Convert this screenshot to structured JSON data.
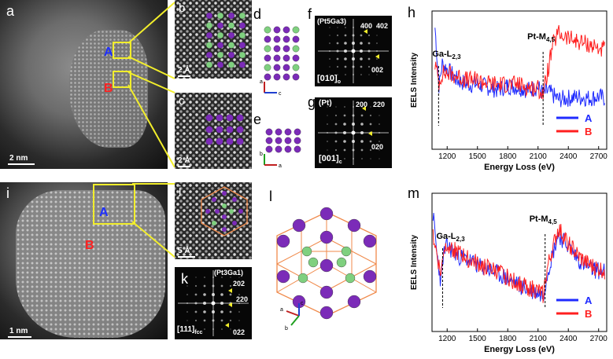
{
  "panels": {
    "a": "a",
    "b": "b",
    "c": "c",
    "d": "d",
    "e": "e",
    "f": "f",
    "g": "g",
    "h": "h",
    "i": "i",
    "j": "j",
    "k": "k",
    "l": "l",
    "m": "m"
  },
  "markers": {
    "A": "A",
    "B": "B"
  },
  "scalebars": {
    "a": "2 nm",
    "b": "2 Å",
    "c": "2 Å",
    "i": "1 nm",
    "j": "5 Å"
  },
  "fft_f": {
    "phase": "(Pt5Ga3)",
    "zone": "[010]",
    "zone_sub": "o",
    "spots": [
      "400",
      "402",
      "002"
    ]
  },
  "fft_g": {
    "phase": "(Pt)",
    "zone": "[001]",
    "zone_sub": "c",
    "spots": [
      "200",
      "220",
      "020"
    ]
  },
  "fft_k": {
    "phase": "(Pt3Ga1)",
    "zone": "[111]",
    "zone_sub": "fcc",
    "spots": [
      "202",
      "220",
      "022"
    ]
  },
  "axes_d": {
    "v": "a",
    "h": "c"
  },
  "axes_e": {
    "v": "b",
    "h": "a"
  },
  "axes_l": {
    "a": "a",
    "b": "b",
    "c": "c"
  },
  "colors": {
    "A": "#1f2bff",
    "B": "#ff1f1f",
    "highlight": "#f2ee2b",
    "cell": "#f08a4b",
    "pt_atom": "#7b2bb8",
    "ga_atom": "#7fd07f"
  },
  "chart_data": [
    {
      "type": "line",
      "panel": "h",
      "ylabel": "EELS Intensity",
      "xlabel": "Energy Loss (eV)",
      "xticks": [
        1200,
        1500,
        1800,
        2100,
        2400,
        2700
      ],
      "xlim": [
        1050,
        2780
      ],
      "edges": [
        {
          "label": "Ga-L2,3",
          "x": 1115
        },
        {
          "label": "Pt-M4,5",
          "x": 2150
        }
      ],
      "legend": [
        "A",
        "B"
      ],
      "series": [
        {
          "name": "A",
          "x": [
            1080,
            1120,
            1150,
            1200,
            1300,
            1400,
            1500,
            1600,
            1700,
            1800,
            1900,
            2000,
            2100,
            2150,
            2200,
            2300,
            2400,
            2500,
            2600,
            2700,
            2760
          ],
          "y": [
            0.88,
            0.45,
            0.62,
            0.58,
            0.5,
            0.47,
            0.47,
            0.45,
            0.43,
            0.46,
            0.45,
            0.43,
            0.45,
            0.4,
            0.42,
            0.36,
            0.37,
            0.38,
            0.37,
            0.38,
            0.37
          ]
        },
        {
          "name": "B",
          "x": [
            1080,
            1120,
            1150,
            1200,
            1300,
            1400,
            1500,
            1600,
            1700,
            1800,
            1900,
            2000,
            2100,
            2150,
            2200,
            2250,
            2300,
            2400,
            2500,
            2600,
            2700,
            2760
          ],
          "y": [
            0.62,
            0.48,
            0.55,
            0.55,
            0.53,
            0.5,
            0.5,
            0.48,
            0.47,
            0.47,
            0.47,
            0.45,
            0.44,
            0.4,
            0.58,
            0.76,
            0.84,
            0.8,
            0.78,
            0.76,
            0.73,
            0.72
          ]
        }
      ]
    },
    {
      "type": "line",
      "panel": "m",
      "ylabel": "EELS Intensity",
      "xlabel": "Energy Loss (eV)",
      "xticks": [
        1200,
        1500,
        1800,
        2100,
        2400,
        2700
      ],
      "xlim": [
        1050,
        2780
      ],
      "edges": [
        {
          "label": "Ga-L2,3",
          "x": 1155
        },
        {
          "label": "Pt-M4,5",
          "x": 2170
        }
      ],
      "legend": [
        "A",
        "B"
      ],
      "series": [
        {
          "name": "A",
          "x": [
            1060,
            1100,
            1140,
            1160,
            1200,
            1300,
            1400,
            1500,
            1600,
            1700,
            1800,
            1900,
            2000,
            2100,
            2150,
            2200,
            2300,
            2400,
            2500,
            2600,
            2700,
            2760
          ],
          "y": [
            0.85,
            0.55,
            0.35,
            0.55,
            0.62,
            0.55,
            0.52,
            0.48,
            0.45,
            0.42,
            0.38,
            0.34,
            0.3,
            0.28,
            0.26,
            0.45,
            0.7,
            0.62,
            0.52,
            0.46,
            0.44,
            0.43
          ]
        },
        {
          "name": "B",
          "x": [
            1060,
            1100,
            1140,
            1160,
            1200,
            1300,
            1400,
            1500,
            1600,
            1700,
            1800,
            1900,
            2000,
            2100,
            2150,
            2200,
            2300,
            2400,
            2500,
            2600,
            2700,
            2760
          ],
          "y": [
            0.7,
            0.55,
            0.4,
            0.58,
            0.64,
            0.57,
            0.53,
            0.49,
            0.46,
            0.43,
            0.39,
            0.35,
            0.32,
            0.29,
            0.27,
            0.48,
            0.74,
            0.64,
            0.54,
            0.48,
            0.45,
            0.44
          ]
        }
      ]
    }
  ]
}
